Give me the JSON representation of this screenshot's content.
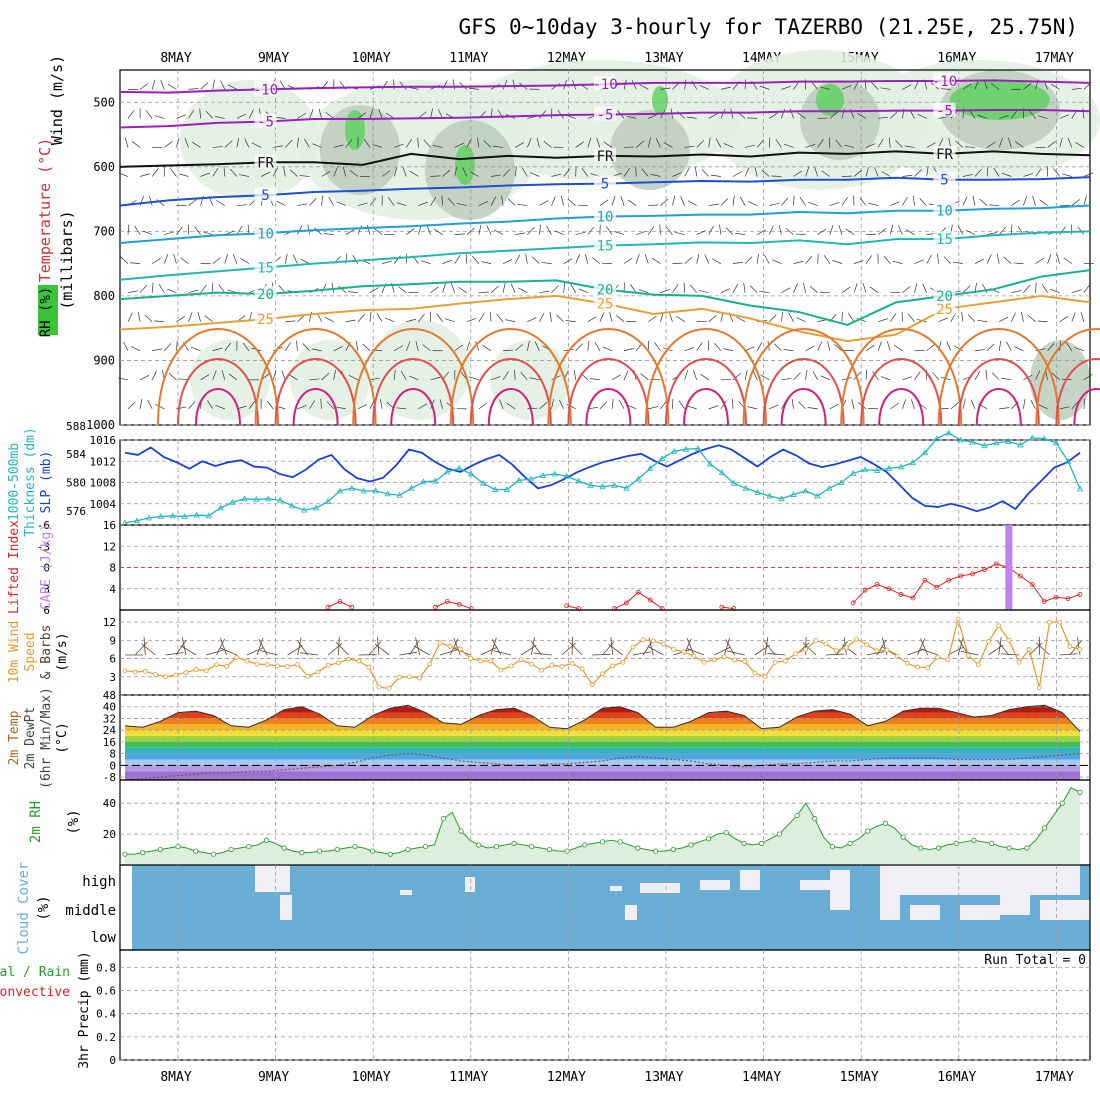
{
  "title": "GFS 0~10day 3-hourly for TAZERBO (21.25E, 25.75N)",
  "dates": [
    "8MAY",
    "9MAY",
    "10MAY",
    "11MAY",
    "12MAY",
    "13MAY",
    "14MAY",
    "15MAY",
    "16MAY",
    "17MAY"
  ],
  "colors": {
    "frame": "#000000",
    "grid": "#9a9a9a",
    "rh_light": "#e2efe2",
    "rh_mid": "#bccdbc",
    "rh_dark": "#8fa58f",
    "rh_green": "#5fd35f",
    "slp": "#1c3fcf",
    "thickness": "#22b5c0",
    "cape": "#c080f0",
    "lifted_index": "#dd2222",
    "wind_speed": "#e39a2a",
    "barb": "#5a4032",
    "rh2m": "#2e9a2e",
    "cloud": "#6aaed6",
    "cloud_clear": "#f1eef6"
  },
  "chart_data": [
    {
      "type": "line",
      "id": "upper_air",
      "ylabels": [
        "Wind (m/s)",
        "Temperature (°C)",
        "RH (%)",
        "(millibars)"
      ],
      "yticks": [
        500,
        600,
        700,
        800,
        900,
        1000
      ],
      "ylim": [
        450,
        1000
      ],
      "isotherms": [
        {
          "label": "-10",
          "color": "#9a1fbe",
          "p": [
            484,
            485,
            482,
            480,
            478,
            477,
            476,
            476,
            475,
            474,
            472,
            470,
            470,
            470,
            468,
            468,
            467,
            467,
            466,
            468,
            470
          ]
        },
        {
          "label": "-5",
          "color": "#9a1fbe",
          "p": [
            539,
            537,
            532,
            530,
            526,
            526,
            525,
            524,
            522,
            520,
            519,
            518,
            516,
            516,
            514,
            514,
            513,
            513,
            512,
            512,
            514
          ]
        },
        {
          "label": "FR",
          "color": "#111111",
          "p": [
            600,
            598,
            596,
            593,
            593,
            597,
            580,
            588,
            583,
            586,
            583,
            584,
            581,
            584,
            578,
            580,
            576,
            580,
            576,
            580,
            582
          ]
        },
        {
          "label": "5",
          "color": "#1c4fd1",
          "p": [
            660,
            652,
            647,
            644,
            639,
            637,
            634,
            632,
            629,
            627,
            626,
            624,
            622,
            623,
            620,
            620,
            617,
            620,
            620,
            619,
            616
          ]
        },
        {
          "label": "10",
          "color": "#1f9fd5",
          "p": [
            718,
            712,
            706,
            703,
            698,
            695,
            692,
            688,
            685,
            680,
            677,
            676,
            674,
            674,
            670,
            672,
            668,
            668,
            665,
            664,
            660
          ]
        },
        {
          "label": "15",
          "color": "#22b7b7",
          "p": [
            775,
            768,
            762,
            756,
            750,
            745,
            740,
            734,
            730,
            726,
            722,
            720,
            717,
            718,
            714,
            720,
            712,
            712,
            706,
            702,
            700
          ]
        },
        {
          "label": "20",
          "color": "#17b090",
          "p": [
            805,
            800,
            795,
            797,
            792,
            785,
            782,
            778,
            778,
            776,
            790,
            798,
            800,
            815,
            825,
            845,
            810,
            800,
            790,
            770,
            760
          ]
        },
        {
          "label": "25",
          "color": "#e1a33a",
          "p": [
            852,
            848,
            842,
            836,
            828,
            822,
            820,
            812,
            805,
            800,
            812,
            828,
            820,
            835,
            855,
            870,
            860,
            820,
            810,
            800,
            810
          ]
        }
      ],
      "rh_levels_pct": [
        30,
        50,
        70,
        90
      ]
    },
    {
      "type": "line",
      "id": "slp_thickness",
      "ylabels": [
        "1000-500mb",
        "Thickness (dm)",
        "SLP (mb)"
      ],
      "slp_ticks": [
        1004,
        1008,
        1012,
        1016
      ],
      "thickness_ticks": [
        576,
        580,
        584,
        588
      ],
      "series": [
        {
          "name": "SLP (mb)",
          "values": [
            1013.6,
            1013.2,
            1014.6,
            1012.8,
            1011.8,
            1010.6,
            1012.0,
            1011.1,
            1011.8,
            1012.2,
            1011.0,
            1010.8,
            1009.6,
            1009.0,
            1010.4,
            1012.3,
            1013.2,
            1010.5,
            1008.8,
            1008.2,
            1008.9,
            1011.2,
            1014.2,
            1013.6,
            1011.9,
            1010.6,
            1010.0,
            1011.3,
            1012.4,
            1013.2,
            1011.4,
            1009.0,
            1006.9,
            1007.5,
            1008.6,
            1009.9,
            1010.9,
            1011.8,
            1012.4,
            1013.0,
            1013.4,
            1012.1,
            1011.0,
            1012.2,
            1013.4,
            1014.3,
            1015.0,
            1014.2,
            1012.6,
            1011.0,
            1012.8,
            1014.2,
            1013.1,
            1011.6,
            1010.9,
            1011.4,
            1012.1,
            1012.8,
            1011.5,
            1010.0,
            1007.6,
            1005.1,
            1003.6,
            1003.4,
            1004.0,
            1003.4,
            1002.6,
            1003.3,
            1004.5,
            1003.0,
            1005.9,
            1008.3,
            1010.8,
            1011.8,
            1013.6
          ]
        },
        {
          "name": "Thickness (dm)",
          "values": [
            574.3,
            574.6,
            575.0,
            575.2,
            575.3,
            575.2,
            575.4,
            575.3,
            576.4,
            577.2,
            577.7,
            577.6,
            577.7,
            577.5,
            576.7,
            576.1,
            576.4,
            577.3,
            578.8,
            579.2,
            578.8,
            578.8,
            578.4,
            578.2,
            579.2,
            580.1,
            580.2,
            581.5,
            582.0,
            581.2,
            579.9,
            579.0,
            579.0,
            580.3,
            580.5,
            581.0,
            581.2,
            580.9,
            580.2,
            579.6,
            579.4,
            579.6,
            579.2,
            580.5,
            582.0,
            583.4,
            584.4,
            584.7,
            584.8,
            582.6,
            581.4,
            579.9,
            579.2,
            578.6,
            578.1,
            577.7,
            578.3,
            578.8,
            578.1,
            579.2,
            580.0,
            581.3,
            581.8,
            581.7,
            582.0,
            582.2,
            582.8,
            584.2,
            586.2,
            587.0,
            586.0,
            585.7,
            585.2,
            585.6,
            585.8,
            585.3,
            586.3,
            586.2,
            585.6,
            583.0,
            579.1
          ]
        }
      ]
    },
    {
      "type": "line",
      "id": "cape_li",
      "ylabels": [
        "Lifted Index",
        "CAPE (J/kg)"
      ],
      "li_ticks": [
        "-6",
        "-3",
        "0",
        "3",
        "6"
      ],
      "cape_ticks": [
        4,
        8,
        12,
        16
      ],
      "series": [
        {
          "name": "Lifted Index",
          "values": [
            {
              "i": 17,
              "li": 5.6
            },
            {
              "i": 18,
              "li": 4.8
            },
            {
              "i": 19,
              "li": 5.6
            },
            {
              "i": 26,
              "li": 5.6
            },
            {
              "i": 27,
              "li": 4.8
            },
            {
              "i": 28,
              "li": 5.2
            },
            {
              "i": 29,
              "li": 5.8
            },
            {
              "i": 37,
              "li": 5.4
            },
            {
              "i": 38,
              "li": 5.8
            },
            {
              "i": 41,
              "li": 5.8
            },
            {
              "i": 42,
              "li": 5.0
            },
            {
              "i": 43,
              "li": 3.5
            },
            {
              "i": 44,
              "li": 4.6
            },
            {
              "i": 45,
              "li": 5.8
            },
            {
              "i": 50,
              "li": 5.6
            },
            {
              "i": 51,
              "li": 5.8
            },
            {
              "i": 61,
              "li": 5.0
            },
            {
              "i": 62,
              "li": 3.2
            },
            {
              "i": 63,
              "li": 2.4
            },
            {
              "i": 64,
              "li": 3.0
            },
            {
              "i": 65,
              "li": 3.8
            },
            {
              "i": 66,
              "li": 4.3
            },
            {
              "i": 67,
              "li": 1.8
            },
            {
              "i": 68,
              "li": 2.8
            },
            {
              "i": 69,
              "li": 1.8
            },
            {
              "i": 70,
              "li": 1.2
            },
            {
              "i": 71,
              "li": 0.9
            },
            {
              "i": 72,
              "li": 0.3
            },
            {
              "i": 73,
              "li": -0.5
            },
            {
              "i": 74,
              "li": 0.0
            },
            {
              "i": 75,
              "li": 1.2
            },
            {
              "i": 76,
              "li": 2.4
            },
            {
              "i": 77,
              "li": 4.8
            },
            {
              "i": 78,
              "li": 4.2
            },
            {
              "i": 79,
              "li": 4.4
            },
            {
              "i": 80,
              "li": 3.8
            }
          ]
        },
        {
          "name": "CAPE (J/kg)",
          "values": [
            {
              "i": 74,
              "cape": 16
            }
          ]
        }
      ]
    },
    {
      "type": "line",
      "id": "wind10m",
      "ylabels": [
        "10m Wind",
        "Speed",
        "& Barbs",
        "(m/s)"
      ],
      "yticks": [
        3,
        6,
        9,
        12
      ],
      "series": [
        {
          "name": "10m Wind Speed",
          "values": [
            4.0,
            3.8,
            3.9,
            3.4,
            3.0,
            3.3,
            3.7,
            4.2,
            4.0,
            5.0,
            4.7,
            6.2,
            5.6,
            5.1,
            5.0,
            4.8,
            4.7,
            5.0,
            3.1,
            3.8,
            4.9,
            5.3,
            5.9,
            5.6,
            4.6,
            1.3,
            1.1,
            2.9,
            3.0,
            2.8,
            5.1,
            8.6,
            8.0,
            7.6,
            6.0,
            5.6,
            5.6,
            4.1,
            4.8,
            5.8,
            5.1,
            4.1,
            4.9,
            4.7,
            5.2,
            4.3,
            1.7,
            3.5,
            4.8,
            5.4,
            7.9,
            9.1,
            8.9,
            8.4,
            7.5,
            7.1,
            6.4,
            5.4,
            5.8,
            6.3,
            5.8,
            5.5,
            3.6,
            3.0,
            5.4,
            5.6,
            6.8,
            7.5,
            9.0,
            8.4,
            7.3,
            7.8,
            9.2,
            8.3,
            7.3,
            7.4,
            6.4,
            5.2,
            4.6,
            4.5,
            6.2,
            5.8,
            12.5,
            6.5,
            5.0,
            8.8,
            11.4,
            9.0,
            5.4,
            7.5,
            1.2,
            12.0,
            12.0,
            8.0,
            7.5
          ]
        }
      ]
    },
    {
      "type": "area",
      "id": "temp2m",
      "ylabels": [
        "2m Temp",
        "2m DewPt",
        "(6hr Min/Max)",
        "(°C)"
      ],
      "yticks": [
        -8,
        0,
        8,
        16,
        24,
        32,
        40,
        48
      ],
      "series": [
        {
          "name": "2m Temp",
          "values": [
            27,
            26,
            30,
            36,
            37,
            34,
            27,
            26,
            31,
            38,
            40,
            35,
            27,
            26,
            34,
            39,
            41,
            36,
            29,
            28,
            34,
            38,
            39,
            34,
            26,
            25,
            31,
            39,
            40,
            36,
            26,
            26,
            30,
            36,
            37,
            34,
            25,
            26,
            33,
            37,
            38,
            35,
            27,
            30,
            37,
            39,
            39,
            36,
            33,
            34,
            38,
            40,
            41,
            36,
            23
          ]
        },
        {
          "name": "2m DewPt",
          "values": [
            -10,
            -9,
            -8,
            -7,
            -6,
            -5,
            -5,
            -4,
            -4,
            -3,
            -2,
            -1,
            0,
            2,
            5,
            7,
            8,
            7,
            5,
            3,
            2,
            1,
            0,
            0,
            1,
            1,
            2,
            3,
            5,
            6,
            5,
            4,
            3,
            1,
            0,
            -1,
            0,
            1,
            1,
            2,
            3,
            3,
            4,
            5,
            5,
            5,
            5,
            4,
            4,
            4,
            4,
            5,
            6,
            7,
            8
          ]
        }
      ]
    },
    {
      "type": "area",
      "id": "rh2m",
      "ylabels": [
        "2m RH",
        "(%)"
      ],
      "yticks": [
        20,
        40
      ],
      "series": [
        {
          "name": "2m RH",
          "values": [
            7,
            7,
            8,
            9,
            10,
            11,
            12,
            11,
            9,
            8,
            7,
            8,
            10,
            11,
            12,
            13,
            16,
            14,
            11,
            9,
            8,
            8,
            9,
            9,
            10,
            11,
            12,
            11,
            9,
            8,
            7,
            8,
            10,
            11,
            12,
            13,
            30,
            34,
            22,
            16,
            13,
            11,
            12,
            13,
            14,
            13,
            12,
            11,
            10,
            9,
            9,
            11,
            13,
            14,
            15,
            16,
            15,
            13,
            11,
            10,
            9,
            9,
            10,
            11,
            13,
            15,
            17,
            20,
            21,
            17,
            14,
            13,
            14,
            17,
            20,
            26,
            32,
            40,
            30,
            18,
            12,
            11,
            14,
            17,
            22,
            25,
            27,
            24,
            18,
            13,
            11,
            10,
            11,
            13,
            14,
            15,
            16,
            15,
            14,
            12,
            11,
            10,
            11,
            16,
            24,
            32,
            40,
            50,
            47
          ]
        }
      ]
    },
    {
      "type": "heatmap",
      "id": "cloud",
      "ylabels": [
        "Cloud Cover",
        "(%)"
      ],
      "levels": [
        "high",
        "middle",
        "low"
      ]
    },
    {
      "type": "bar",
      "id": "precip",
      "ylabels": [
        "Total / Rain",
        "Convective",
        "3hr Precip (mm)"
      ],
      "yticks": [
        "0",
        "0.2",
        "0.4",
        "0.6",
        "0.8"
      ],
      "run_total": "Run Total = 0",
      "values": []
    }
  ]
}
